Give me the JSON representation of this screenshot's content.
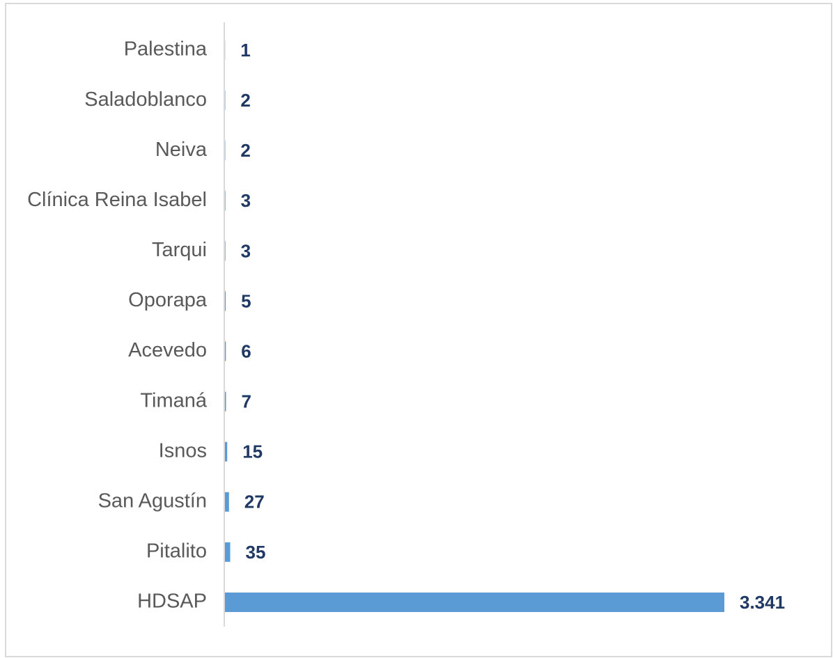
{
  "chart_data": {
    "type": "bar",
    "orientation": "horizontal",
    "categories": [
      "Palestina",
      "Saladoblanco",
      "Neiva",
      "Clínica Reina Isabel",
      "Tarqui",
      "Oporapa",
      "Acevedo",
      "Timaná",
      "Isnos",
      "San Agustín",
      "Pitalito",
      "HDSAP"
    ],
    "values": [
      1,
      2,
      2,
      3,
      3,
      5,
      6,
      7,
      15,
      27,
      35,
      3341
    ],
    "value_labels": [
      "1",
      "2",
      "2",
      "3",
      "3",
      "5",
      "6",
      "7",
      "15",
      "27",
      "35",
      "3.341"
    ],
    "color": "#5b9bd5",
    "label_color": "#1f3864",
    "xlim": [
      0,
      3341
    ]
  }
}
